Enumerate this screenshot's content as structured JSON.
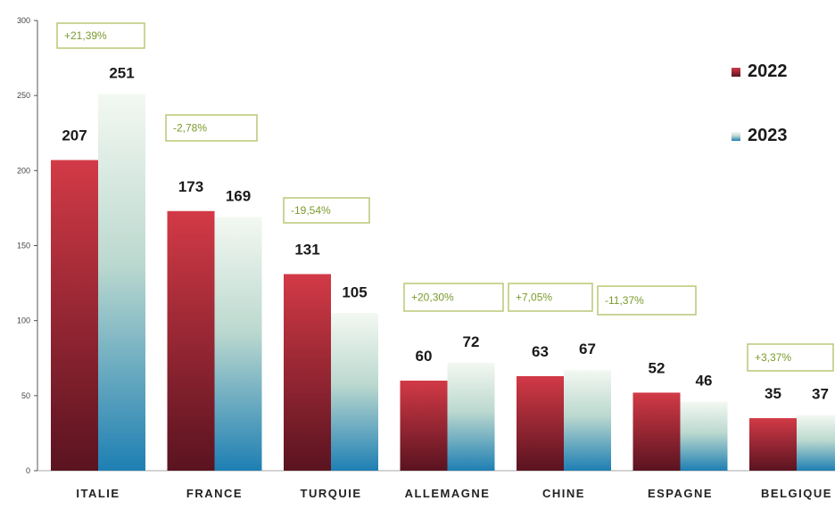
{
  "colors": {
    "series_2022_top": "#d23a46",
    "series_2022_bottom": "#5a1320",
    "series_2023_top": "#f3f8f2",
    "series_2023_mid": "#bcd9cf",
    "series_2023_bottom": "#1e7fb3",
    "pct_border": "#b8c976",
    "pct_text": "#7b9a2c"
  },
  "chart_data": {
    "type": "bar",
    "categories": [
      "ITALIE",
      "FRANCE",
      "TURQUIE",
      "ALLEMAGNE",
      "CHINE",
      "ESPAGNE",
      "BELGIQUE"
    ],
    "series": [
      {
        "name": "2022",
        "values": [
          207,
          173,
          131,
          60,
          63,
          52,
          35
        ]
      },
      {
        "name": "2023",
        "values": [
          251,
          169,
          105,
          72,
          67,
          46,
          37
        ]
      }
    ],
    "percent_changes": [
      "+21,39%",
      "-2,78%",
      "-19,54%",
      "+20,30%",
      "+7,05%",
      "-11,37%",
      "+3,37%"
    ],
    "ylim": [
      0,
      300
    ],
    "yticks": [
      "0",
      "50",
      "100",
      "150",
      "200",
      "250",
      "300"
    ],
    "title": "",
    "xlabel": "",
    "ylabel": "",
    "legend_position": "top-right",
    "grid": false
  }
}
